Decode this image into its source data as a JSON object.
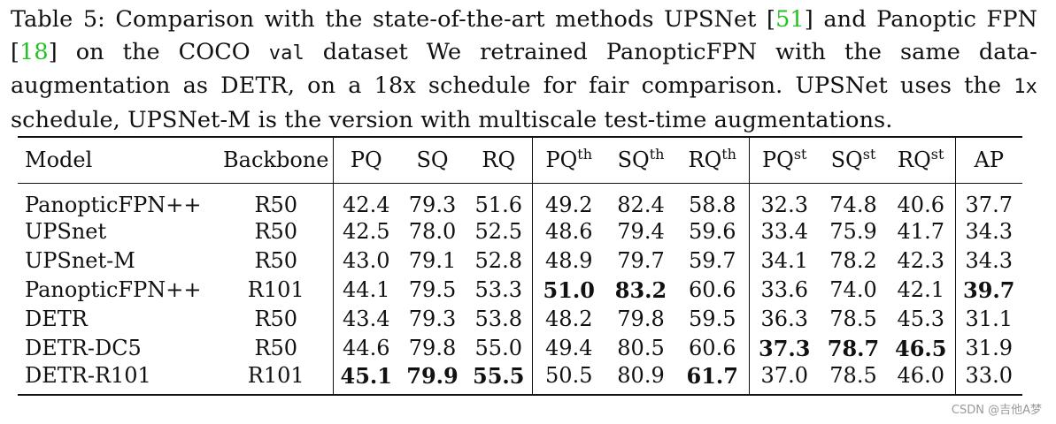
{
  "caption": {
    "lead": "Table 5: Comparison with the state-of-the-art methods UPSNet [",
    "ref1": "51",
    "mid1": "] and Panoptic FPN [",
    "ref2": "18",
    "mid2": "] on the COCO ",
    "code1": "val",
    "mid3": " dataset We retrained PanopticFPN with the same data-augmentation as DETR, on a 18x schedule for fair comparison. UPSNet uses the ",
    "code2": "1x",
    "tail": " schedule, UPSNet-M is the version with multiscale test-time augmentations."
  },
  "table": {
    "headers": {
      "model": "Model",
      "backbone": "Backbone",
      "pq": "PQ",
      "sq": "SQ",
      "rq": "RQ",
      "pq_th": "PQ",
      "pq_th_sup": "th",
      "sq_th": "SQ",
      "sq_th_sup": "th",
      "rq_th": "RQ",
      "rq_th_sup": "th",
      "pq_st": "PQ",
      "pq_st_sup": "st",
      "sq_st": "SQ",
      "sq_st_sup": "st",
      "rq_st": "RQ",
      "rq_st_sup": "st",
      "ap": "AP"
    },
    "rows": [
      {
        "model": "PanopticFPN++",
        "backbone": "R50",
        "pq": "42.4",
        "sq": "79.3",
        "rq": "51.6",
        "pq_th": "49.2",
        "sq_th": "82.4",
        "rq_th": "58.8",
        "pq_st": "32.3",
        "sq_st": "74.8",
        "rq_st": "40.6",
        "ap": "37.7"
      },
      {
        "model": "UPSnet",
        "backbone": "R50",
        "pq": "42.5",
        "sq": "78.0",
        "rq": "52.5",
        "pq_th": "48.6",
        "sq_th": "79.4",
        "rq_th": "59.6",
        "pq_st": "33.4",
        "sq_st": "75.9",
        "rq_st": "41.7",
        "ap": "34.3"
      },
      {
        "model": "UPSnet-M",
        "backbone": "R50",
        "pq": "43.0",
        "sq": "79.1",
        "rq": "52.8",
        "pq_th": "48.9",
        "sq_th": "79.7",
        "rq_th": "59.7",
        "pq_st": "34.1",
        "sq_st": "78.2",
        "rq_st": "42.3",
        "ap": "34.3"
      },
      {
        "model": "PanopticFPN++",
        "backbone": "R101",
        "pq": "44.1",
        "sq": "79.5",
        "rq": "53.3",
        "pq_th": "51.0",
        "sq_th": "83.2",
        "rq_th": "60.6",
        "pq_st": "33.6",
        "sq_st": "74.0",
        "rq_st": "42.1",
        "ap": "39.7"
      },
      {
        "model": "DETR",
        "backbone": "R50",
        "pq": "43.4",
        "sq": "79.3",
        "rq": "53.8",
        "pq_th": "48.2",
        "sq_th": "79.8",
        "rq_th": "59.5",
        "pq_st": "36.3",
        "sq_st": "78.5",
        "rq_st": "45.3",
        "ap": "31.1"
      },
      {
        "model": "DETR-DC5",
        "backbone": "R50",
        "pq": "44.6",
        "sq": "79.8",
        "rq": "55.0",
        "pq_th": "49.4",
        "sq_th": "80.5",
        "rq_th": "60.6",
        "pq_st": "37.3",
        "sq_st": "78.7",
        "rq_st": "46.5",
        "ap": "31.9"
      },
      {
        "model": "DETR-R101",
        "backbone": "R101",
        "pq": "45.1",
        "sq": "79.9",
        "rq": "55.5",
        "pq_th": "50.5",
        "sq_th": "80.9",
        "rq_th": "61.7",
        "pq_st": "37.0",
        "sq_st": "78.5",
        "rq_st": "46.0",
        "ap": "33.0"
      }
    ],
    "bold_cells": [
      "3.pq_th",
      "3.sq_th",
      "3.ap",
      "5.pq_st",
      "5.sq_st",
      "5.rq_st",
      "6.pq",
      "6.sq",
      "6.rq",
      "6.rq_th"
    ]
  },
  "watermark": "CSDN @吉他A梦",
  "colors": {
    "ref_link": "#22c222",
    "text": "#111111",
    "watermark": "#9a9a9a"
  }
}
